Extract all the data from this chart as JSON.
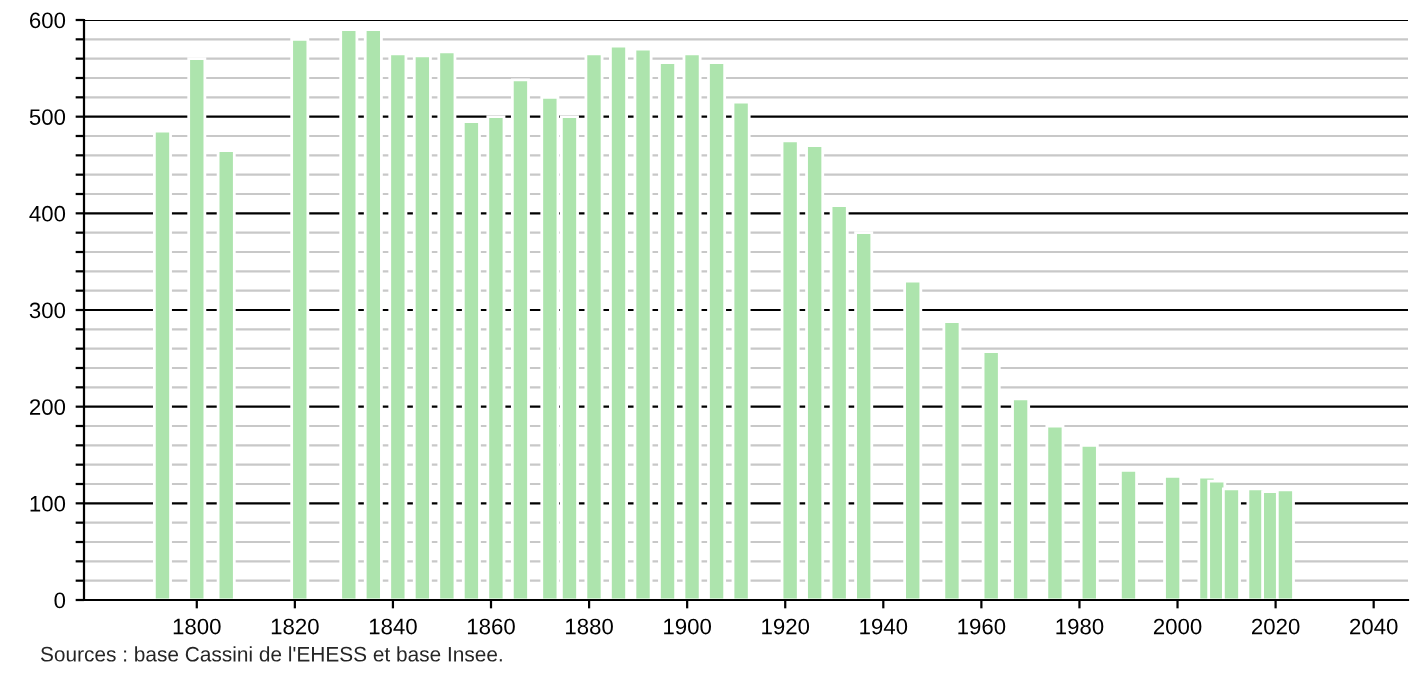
{
  "chart_data": {
    "type": "bar",
    "x": [
      1793,
      1800,
      1806,
      1821,
      1831,
      1836,
      1841,
      1846,
      1851,
      1856,
      1861,
      1866,
      1872,
      1876,
      1881,
      1886,
      1891,
      1896,
      1901,
      1906,
      1911,
      1921,
      1926,
      1931,
      1936,
      1946,
      1954,
      1962,
      1968,
      1975,
      1982,
      1990,
      1999,
      2006,
      2008,
      2011,
      2016,
      2019,
      2022
    ],
    "values": [
      485,
      560,
      465,
      580,
      590,
      590,
      565,
      563,
      567,
      495,
      500,
      538,
      520,
      500,
      565,
      573,
      570,
      556,
      565,
      556,
      515,
      475,
      470,
      408,
      380,
      330,
      288,
      257,
      208,
      180,
      160,
      134,
      128,
      127,
      123,
      115,
      115,
      112,
      114
    ],
    "color": "#ade4ad",
    "xlim": [
      1777,
      2047
    ],
    "xticks": [
      1800,
      1820,
      1840,
      1860,
      1880,
      1900,
      1920,
      1940,
      1960,
      1980,
      2000,
      2020,
      2040
    ],
    "ylim": [
      0,
      600
    ],
    "yticks": [
      0,
      {
        "value": 20,
        "label": null
      },
      {
        "value": 40,
        "label": null
      },
      {
        "value": 60,
        "label": null
      },
      {
        "value": 80,
        "label": null
      },
      100,
      {
        "value": 120,
        "label": null
      },
      {
        "value": 140,
        "label": null
      },
      {
        "value": 160,
        "label": null
      },
      {
        "value": 180,
        "label": null
      },
      200,
      {
        "value": 220,
        "label": null
      },
      {
        "value": 240,
        "label": null
      },
      {
        "value": 260,
        "label": null
      },
      {
        "value": 280,
        "label": null
      },
      300,
      {
        "value": 320,
        "label": null
      },
      {
        "value": 340,
        "label": null
      },
      {
        "value": 360,
        "label": null
      },
      {
        "value": 380,
        "label": null
      },
      400,
      {
        "value": 420,
        "label": null
      },
      {
        "value": 440,
        "label": null
      },
      {
        "value": 460,
        "label": null
      },
      {
        "value": 480,
        "label": null
      },
      500,
      {
        "value": 520,
        "label": null
      },
      {
        "value": 540,
        "label": null
      },
      {
        "value": 560,
        "label": null
      },
      {
        "value": 580,
        "label": null
      },
      600
    ],
    "grid": "y",
    "annotations": [
      "Sources : base Cassini de l'EHESS et base Insee."
    ]
  }
}
